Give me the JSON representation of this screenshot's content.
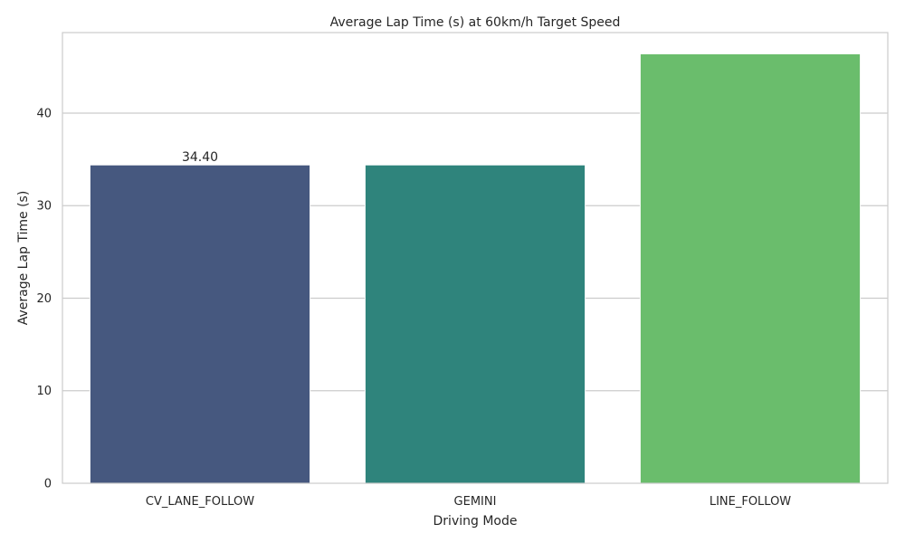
{
  "chart_data": {
    "type": "bar",
    "title": "Average Lap Time (s) at 60km/h Target Speed",
    "xlabel": "Driving Mode",
    "ylabel": "Average Lap Time (s)",
    "categories": [
      "CV_LANE_FOLLOW",
      "GEMINI",
      "LINE_FOLLOW"
    ],
    "values": [
      34.4,
      34.4,
      46.4
    ],
    "colors": [
      "#46587f",
      "#2f847c",
      "#6abd6c"
    ],
    "data_labels": [
      "34.40",
      "",
      ""
    ],
    "ylim": [
      0,
      48.7
    ],
    "yticks": [
      0,
      10,
      20,
      30,
      40
    ],
    "grid": "horizontal",
    "legend": "none"
  }
}
